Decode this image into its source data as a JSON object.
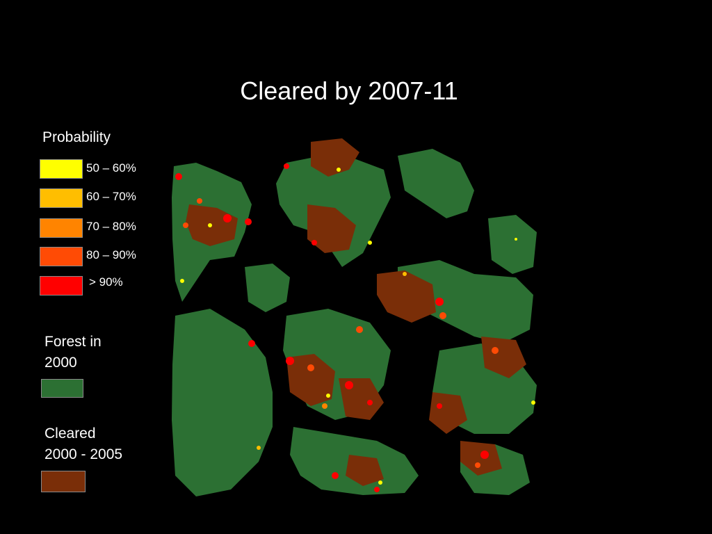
{
  "slide": {
    "title": "Cleared by 2007-11"
  },
  "legend": {
    "probability_heading": "Probability",
    "probability_classes": [
      {
        "label": "50 – 60%",
        "color": "#ffff00"
      },
      {
        "label": "60 – 70%",
        "color": "#ffbe00"
      },
      {
        "label": "70 – 80%",
        "color": "#ff8400"
      },
      {
        "label": "80 – 90%",
        "color": "#ff4b05"
      },
      {
        "label": "> 90%",
        "color": "#ff0000"
      }
    ],
    "forest": {
      "line1": "Forest in",
      "line2": "2000",
      "color": "#2c7033"
    },
    "cleared": {
      "line1": "Cleared",
      "line2": "2000 - 2005",
      "color": "#7a2e08"
    }
  },
  "map": {
    "background_color": "#000000",
    "forest_color": "#2c7033",
    "cleared_color": "#7a2e08"
  }
}
